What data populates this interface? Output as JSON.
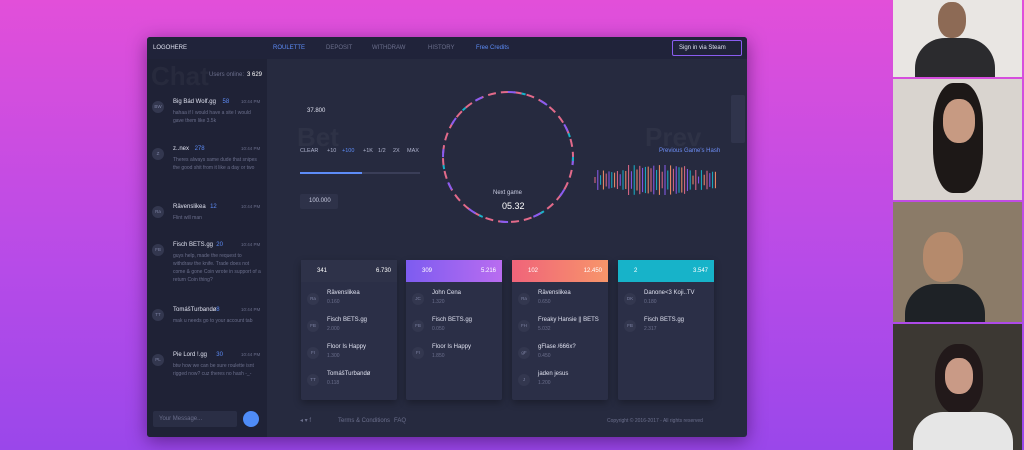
{
  "nav": {
    "logo": "LOGOHERE",
    "links": [
      "ROULETTE",
      "DEPOSIT",
      "WITHDRAW",
      "HISTORY"
    ],
    "free_credits": "Free Credits",
    "sign_in": "Sign in via Steam"
  },
  "chat": {
    "heading": "Chat",
    "users_online_label": "Users online:",
    "users_online": "3 629",
    "messages": [
      {
        "avatar": "BW",
        "user": "Big Bád Wolf.gg",
        "level": "58",
        "time": "10:44 PM",
        "text": "hahaa if I would have a site I would gave them like 3.5k"
      },
      {
        "avatar": "Z",
        "user": "z..nex",
        "level": "278",
        "time": "10:44 PM",
        "text": "Theres always same dude that snipes the good shit from it like a day or two"
      },
      {
        "avatar": "Ra",
        "user": "Rävenslikea",
        "level": "12",
        "time": "10:44 PM",
        "text": "Flint will man"
      },
      {
        "avatar": "FB",
        "user": "Fisch BETS.gg",
        "level": "20",
        "time": "10:44 PM",
        "text": "guys help, made the request to withdraw the knife. Trade does not come & gone Coin wrote in support of a return Coin thing?"
      },
      {
        "avatar": "TT",
        "user": "TomášTurbandø",
        "level": "8",
        "time": "10:44 PM",
        "text": "mak u needs go to your account tab"
      },
      {
        "avatar": "PL",
        "user": "Pie Lord !.gg",
        "level": "30",
        "time": "10:44 PM",
        "text": "btw how we can be sure roulette isnt rigged now? cuz theres no hash -_-"
      }
    ],
    "input_placeholder": "Your Message..."
  },
  "bet": {
    "heading": "Bet",
    "balance": "37.800",
    "buttons": [
      "CLEAR",
      "+10",
      "+100",
      "+1K",
      "1/2",
      "2X",
      "MAX"
    ],
    "amount": "100.000"
  },
  "wheel": {
    "label": "Next game",
    "timer": "05.32"
  },
  "previous": {
    "heading": "Prev",
    "hash_link": "Previous Game's Hash"
  },
  "pools": [
    {
      "players": "341",
      "total": "6.730",
      "entries": [
        {
          "avatar": "Ra",
          "user": "Rävenslikea",
          "amount": "0.160"
        },
        {
          "avatar": "FB",
          "user": "Fisch BETS.gg",
          "amount": "2.000"
        },
        {
          "avatar": "FI",
          "user": "Floor Is Happy",
          "amount": "1.300"
        },
        {
          "avatar": "TT",
          "user": "TomášTurbandø",
          "amount": "0.118"
        }
      ]
    },
    {
      "players": "309",
      "total": "5.216",
      "entries": [
        {
          "avatar": "JC",
          "user": "John Cena",
          "amount": "1.320"
        },
        {
          "avatar": "FB",
          "user": "Fisch BETS.gg",
          "amount": "0.050"
        },
        {
          "avatar": "FI",
          "user": "Floor Is Happy",
          "amount": "1.850"
        }
      ]
    },
    {
      "players": "102",
      "total": "12.450",
      "entries": [
        {
          "avatar": "Ra",
          "user": "Rävenslikea",
          "amount": "0.650"
        },
        {
          "avatar": "FH",
          "user": "Freaky Hansie || BETS",
          "amount": "5.032"
        },
        {
          "avatar": "gF",
          "user": "gFlase /666x?",
          "amount": "0.450"
        },
        {
          "avatar": "J",
          "user": "jaden jesus",
          "amount": "1.200"
        }
      ]
    },
    {
      "players": "2",
      "total": "3.547",
      "entries": [
        {
          "avatar": "DK",
          "user": "Danone<3 Koji..TV",
          "amount": "0.180"
        },
        {
          "avatar": "FB",
          "user": "Fisch BETS.gg",
          "amount": "2.317"
        }
      ]
    }
  ],
  "footer": {
    "links": [
      "Terms & Conditions",
      "FAQ"
    ],
    "copyright": "Copyright © 2016-2017 - All rights reserved"
  }
}
